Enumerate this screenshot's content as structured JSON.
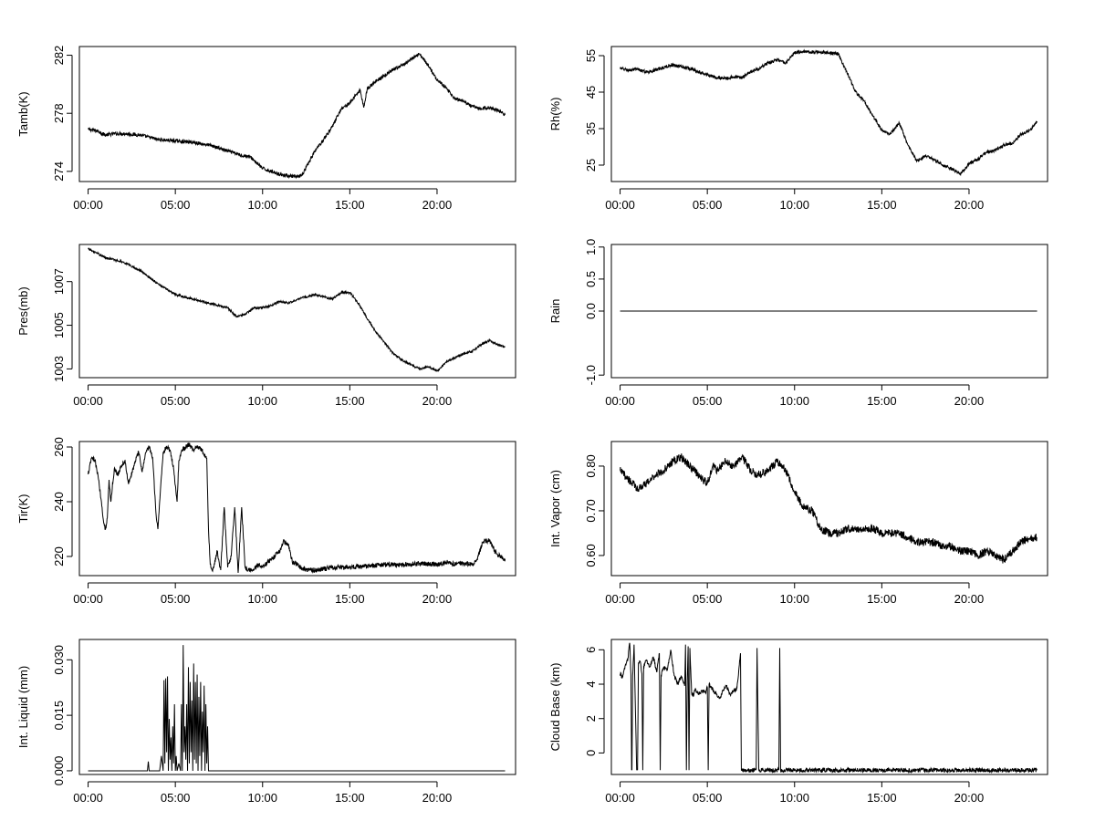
{
  "chart_data": [
    {
      "type": "line",
      "ylabel": "Tamb(K)",
      "x_ticks": [
        0,
        5,
        10,
        15,
        20
      ],
      "x_tick_labels": [
        "00:00",
        "05:00",
        "10:00",
        "15:00",
        "20:00"
      ],
      "xlim": [
        -0.5,
        24.5
      ],
      "ylim": [
        273.3,
        282.6
      ],
      "y_ticks": [
        274,
        278,
        282
      ],
      "y_tick_labels": [
        "274",
        "278",
        "282"
      ],
      "x": [
        0,
        0.5,
        1,
        1.5,
        2,
        3,
        4,
        5,
        6,
        7,
        8,
        8.8,
        9.3,
        10,
        10.5,
        11,
        11.5,
        12,
        12.3,
        12.6,
        13,
        13.5,
        14,
        14.5,
        15,
        15.3,
        15.6,
        15.8,
        16,
        16.5,
        17,
        17.5,
        18,
        18.5,
        19,
        19.2,
        19.6,
        20,
        20.5,
        21,
        21.5,
        22,
        22.5,
        23,
        23.5,
        23.9
      ],
      "y": [
        276.9,
        276.8,
        276.5,
        276.6,
        276.6,
        276.5,
        276.2,
        276.1,
        276.0,
        275.8,
        275.4,
        275.1,
        275.0,
        274.2,
        274.0,
        273.8,
        273.7,
        273.6,
        273.8,
        274.5,
        275.4,
        276.2,
        277.1,
        278.3,
        278.7,
        279.2,
        279.6,
        278.4,
        279.7,
        280.2,
        280.6,
        281.0,
        281.3,
        281.7,
        282.1,
        281.8,
        281.1,
        280.3,
        279.8,
        279.0,
        278.8,
        278.5,
        278.3,
        278.4,
        278.2,
        277.9
      ],
      "noise": 0.12
    },
    {
      "type": "line",
      "ylabel": "Rh(%)",
      "x_ticks": [
        0,
        5,
        10,
        15,
        20
      ],
      "x_tick_labels": [
        "00:00",
        "05:00",
        "10:00",
        "15:00",
        "20:00"
      ],
      "xlim": [
        -0.5,
        24.5
      ],
      "ylim": [
        20.5,
        57.5
      ],
      "y_ticks": [
        25,
        35,
        45,
        55
      ],
      "y_tick_labels": [
        "25",
        "35",
        "45",
        "55"
      ],
      "x": [
        0,
        0.5,
        1,
        1.5,
        2,
        3,
        4,
        5,
        5.5,
        6,
        6.5,
        7,
        7.5,
        8,
        8.5,
        9,
        9.5,
        10,
        10.5,
        11,
        11.5,
        12,
        12.5,
        13,
        13.5,
        14,
        14.5,
        15,
        15.5,
        16,
        16.5,
        17,
        17.5,
        18,
        18.5,
        19,
        19.5,
        20,
        20.5,
        21,
        21.5,
        22,
        22.5,
        23,
        23.5,
        23.9
      ],
      "y": [
        51.5,
        51.0,
        51.2,
        50.5,
        51.0,
        52.5,
        51.5,
        49.8,
        49.0,
        48.8,
        49.2,
        49.0,
        50.5,
        51.5,
        53.0,
        53.8,
        53.0,
        55.8,
        56.2,
        56.0,
        56.0,
        55.8,
        55.5,
        50.5,
        45.0,
        42.5,
        38.5,
        34.5,
        33.5,
        36.5,
        30.5,
        26.0,
        27.5,
        26.5,
        25.0,
        24.0,
        22.5,
        25.5,
        26.5,
        28.5,
        29.0,
        30.5,
        31.0,
        33.5,
        34.5,
        37.0
      ],
      "noise": 0.45
    },
    {
      "type": "line",
      "ylabel": "Pres(mb)",
      "x_ticks": [
        0,
        5,
        10,
        15,
        20
      ],
      "x_tick_labels": [
        "00:00",
        "05:00",
        "10:00",
        "15:00",
        "20:00"
      ],
      "xlim": [
        -0.5,
        24.5
      ],
      "ylim": [
        1002.6,
        1008.7
      ],
      "y_ticks": [
        1003,
        1005,
        1007
      ],
      "y_tick_labels": [
        "1003",
        "1005",
        "1007"
      ],
      "x": [
        0,
        0.5,
        1,
        1.5,
        2,
        3,
        4,
        5,
        6,
        7,
        8,
        8.5,
        9,
        9.5,
        10,
        10.5,
        11,
        11.5,
        12,
        12.5,
        13,
        13.5,
        14,
        14.5,
        15,
        15.5,
        16,
        16.5,
        17,
        17.5,
        18,
        18.5,
        19,
        19.5,
        20,
        20.5,
        21,
        21.5,
        22,
        22.5,
        23,
        23.5,
        23.9
      ],
      "y": [
        1008.5,
        1008.3,
        1008.1,
        1008.0,
        1007.9,
        1007.5,
        1006.9,
        1006.4,
        1006.2,
        1006.0,
        1005.8,
        1005.4,
        1005.5,
        1005.8,
        1005.8,
        1005.9,
        1006.1,
        1006.0,
        1006.2,
        1006.3,
        1006.4,
        1006.3,
        1006.2,
        1006.5,
        1006.5,
        1006.0,
        1005.3,
        1004.7,
        1004.2,
        1003.7,
        1003.4,
        1003.2,
        1003.0,
        1003.1,
        1002.9,
        1003.3,
        1003.5,
        1003.7,
        1003.8,
        1004.1,
        1004.3,
        1004.1,
        1004.0
      ],
      "noise": 0.05
    },
    {
      "type": "line",
      "ylabel": "Rain",
      "x_ticks": [
        0,
        5,
        10,
        15,
        20
      ],
      "x_tick_labels": [
        "00:00",
        "05:00",
        "10:00",
        "15:00",
        "20:00"
      ],
      "xlim": [
        -0.5,
        24.5
      ],
      "ylim": [
        -1.04,
        1.04
      ],
      "y_ticks": [
        -1.0,
        0.0,
        0.5,
        1.0
      ],
      "y_tick_labels": [
        "-1.0",
        "0.0",
        "0.5",
        "1.0"
      ],
      "x": [
        0,
        23.9
      ],
      "y": [
        0,
        0
      ],
      "noise": 0
    },
    {
      "type": "line",
      "ylabel": "Tir(K)",
      "x_ticks": [
        0,
        5,
        10,
        15,
        20
      ],
      "x_tick_labels": [
        "00:00",
        "05:00",
        "10:00",
        "15:00",
        "20:00"
      ],
      "xlim": [
        -0.5,
        24.5
      ],
      "ylim": [
        213,
        262
      ],
      "y_ticks": [
        220,
        240,
        260
      ],
      "y_tick_labels": [
        "220",
        "240",
        "260"
      ],
      "x": [
        0,
        0.2,
        0.4,
        0.6,
        0.8,
        0.9,
        1.0,
        1.1,
        1.2,
        1.3,
        1.5,
        1.7,
        1.9,
        2.1,
        2.3,
        2.5,
        2.7,
        2.9,
        3.1,
        3.3,
        3.5,
        3.7,
        3.9,
        4.0,
        4.1,
        4.3,
        4.5,
        4.7,
        4.9,
        5.1,
        5.2,
        5.4,
        5.6,
        5.8,
        6.0,
        6.2,
        6.4,
        6.6,
        6.8,
        6.9,
        7.0,
        7.1,
        7.2,
        7.4,
        7.6,
        7.8,
        8.0,
        8.2,
        8.4,
        8.6,
        8.8,
        9.0,
        9.2,
        9.4,
        9.6,
        9.8,
        10.0,
        10.5,
        11.0,
        11.2,
        11.5,
        11.7,
        12.0,
        12.5,
        13,
        14,
        15,
        16,
        17,
        18,
        19,
        20,
        20.5,
        21,
        21.5,
        22,
        22.3,
        22.6,
        23.0,
        23.3,
        23.6,
        23.9
      ],
      "y": [
        250,
        256,
        255,
        248,
        238,
        232,
        230,
        234,
        248,
        240,
        252,
        250,
        253,
        255,
        247,
        250,
        255,
        258,
        251,
        258,
        260,
        256,
        235,
        230,
        240,
        258,
        260,
        259,
        252,
        240,
        255,
        259,
        260,
        261,
        259,
        260,
        260,
        258,
        256,
        230,
        217,
        215,
        216,
        222,
        215,
        238,
        216,
        220,
        238,
        214,
        238,
        216,
        215,
        215,
        216,
        217,
        216,
        219,
        222,
        226,
        224,
        218,
        217,
        215,
        215,
        216,
        216,
        216.5,
        217,
        217,
        217.5,
        217,
        218,
        217,
        217.5,
        217,
        219,
        225,
        226,
        222,
        220,
        219
      ],
      "noise": 0.9
    },
    {
      "type": "line",
      "ylabel": "Int. Vapor (cm)",
      "x_ticks": [
        0,
        5,
        10,
        15,
        20
      ],
      "x_tick_labels": [
        "00:00",
        "05:00",
        "10:00",
        "15:00",
        "20:00"
      ],
      "xlim": [
        -0.5,
        24.5
      ],
      "ylim": [
        0.555,
        0.855
      ],
      "y_ticks": [
        0.6,
        0.7,
        0.8
      ],
      "y_tick_labels": [
        "0.60",
        "0.70",
        "0.80"
      ],
      "x": [
        0,
        0.5,
        1,
        1.5,
        2,
        2.5,
        3,
        3.5,
        4,
        4.5,
        5,
        5.3,
        5.6,
        6,
        6.5,
        7,
        7.5,
        8,
        8.5,
        9,
        9.5,
        10,
        10.5,
        11,
        11.5,
        12,
        12.5,
        13,
        13.5,
        14,
        14.5,
        15,
        15.5,
        16,
        16.5,
        17,
        17.5,
        18,
        18.5,
        19,
        19.5,
        20,
        20.5,
        21,
        21.5,
        22,
        22.5,
        23,
        23.5,
        23.9
      ],
      "y": [
        0.79,
        0.77,
        0.75,
        0.76,
        0.78,
        0.79,
        0.81,
        0.82,
        0.8,
        0.78,
        0.76,
        0.8,
        0.79,
        0.81,
        0.8,
        0.82,
        0.79,
        0.78,
        0.79,
        0.81,
        0.79,
        0.74,
        0.71,
        0.7,
        0.66,
        0.65,
        0.65,
        0.66,
        0.66,
        0.66,
        0.66,
        0.65,
        0.65,
        0.65,
        0.64,
        0.63,
        0.63,
        0.63,
        0.62,
        0.62,
        0.61,
        0.61,
        0.6,
        0.61,
        0.6,
        0.59,
        0.61,
        0.63,
        0.64,
        0.64
      ],
      "noise": 0.009
    },
    {
      "type": "line",
      "ylabel": "Int. Liquid (mm)",
      "x_ticks": [
        0,
        5,
        10,
        15,
        20
      ],
      "x_tick_labels": [
        "00:00",
        "05:00",
        "10:00",
        "15:00",
        "20:00"
      ],
      "xlim": [
        -0.5,
        24.5
      ],
      "ylim": [
        -0.001,
        0.0355
      ],
      "y_ticks": [
        0,
        0.015,
        0.03
      ],
      "y_tick_labels": [
        "0.000",
        "0.015",
        "0.030"
      ],
      "x": [
        0,
        3.4,
        3.45,
        3.5,
        4.1,
        4.2,
        4.3,
        4.35,
        4.4,
        4.45,
        4.5,
        4.55,
        4.6,
        4.65,
        4.7,
        4.75,
        4.8,
        4.85,
        4.9,
        4.95,
        5.0,
        5.05,
        5.1,
        5.2,
        5.3,
        5.35,
        5.4,
        5.45,
        5.5,
        5.55,
        5.6,
        5.65,
        5.7,
        5.75,
        5.8,
        5.85,
        5.9,
        5.95,
        6.0,
        6.05,
        6.1,
        6.15,
        6.2,
        6.25,
        6.3,
        6.35,
        6.4,
        6.45,
        6.5,
        6.55,
        6.6,
        6.65,
        6.7,
        6.75,
        6.8,
        6.85,
        6.9,
        23.9
      ],
      "y": [
        0,
        0,
        0.0025,
        0,
        0,
        0.004,
        0,
        0.0245,
        0.002,
        0.025,
        0.005,
        0.0255,
        0,
        0.014,
        0.003,
        0.009,
        0,
        0.012,
        0.002,
        0.018,
        0,
        0.004,
        0,
        0.002,
        0,
        0.018,
        0,
        0.034,
        0.005,
        0.012,
        0.003,
        0.018,
        0,
        0.028,
        0.002,
        0.024,
        0.005,
        0.019,
        0,
        0.029,
        0.003,
        0.024,
        0.002,
        0.026,
        0,
        0.02,
        0.004,
        0.024,
        0,
        0.016,
        0.005,
        0.023,
        0,
        0.018,
        0.002,
        0.012,
        0,
        0
      ],
      "noise": 0
    },
    {
      "type": "line",
      "ylabel": "Cloud Base (km)",
      "x_ticks": [
        0,
        5,
        10,
        15,
        20
      ],
      "x_tick_labels": [
        "00:00",
        "05:00",
        "10:00",
        "15:00",
        "20:00"
      ],
      "xlim": [
        -0.5,
        24.5
      ],
      "ylim": [
        -1.25,
        6.6
      ],
      "y_ticks": [
        0,
        2,
        4,
        6
      ],
      "y_tick_labels": [
        "0",
        "2",
        "4",
        "6"
      ],
      "x": [
        0,
        0.15,
        0.3,
        0.45,
        0.55,
        0.62,
        0.66,
        0.68,
        0.72,
        0.8,
        0.95,
        1.0,
        1.05,
        1.15,
        1.25,
        1.3,
        1.35,
        1.5,
        1.7,
        1.9,
        2.1,
        2.25,
        2.3,
        2.35,
        2.5,
        2.7,
        2.9,
        3.1,
        3.3,
        3.5,
        3.7,
        3.75,
        3.8,
        3.85,
        3.9,
        3.95,
        4.0,
        4.05,
        4.1,
        4.2,
        4.3,
        4.5,
        4.7,
        4.9,
        5.0,
        5.05,
        5.1,
        5.3,
        5.5,
        5.7,
        5.9,
        6.1,
        6.3,
        6.5,
        6.7,
        6.9,
        6.95,
        7.0,
        7.5,
        7.8,
        7.85,
        7.9,
        7.95,
        8.0,
        8.5,
        9.1,
        9.15,
        9.2,
        9.25,
        9.3,
        23.9
      ],
      "y": [
        4.6,
        4.4,
        5.1,
        5.5,
        6.4,
        4.6,
        -1.0,
        -1.0,
        4.5,
        6.3,
        -1.0,
        -1.0,
        5.2,
        5.3,
        4.6,
        -1.0,
        5.0,
        5.4,
        5.0,
        5.6,
        4.7,
        5.8,
        -1.0,
        4.5,
        5.0,
        4.8,
        6.0,
        4.5,
        4.0,
        4.5,
        3.9,
        6.3,
        -1.0,
        4.2,
        6.2,
        -1.0,
        6.1,
        4.8,
        3.5,
        3.3,
        3.7,
        3.4,
        3.6,
        3.5,
        3.8,
        -1.0,
        4.0,
        3.7,
        3.5,
        3.2,
        3.6,
        3.9,
        3.4,
        3.6,
        3.8,
        5.8,
        -1.0,
        -1.0,
        -1.0,
        -1.0,
        6.1,
        2.5,
        -1.0,
        -1.0,
        -1.0,
        -1.0,
        6.1,
        -1.0,
        -1.0,
        -1.0,
        -1.0
      ],
      "noise": 0.12
    }
  ]
}
